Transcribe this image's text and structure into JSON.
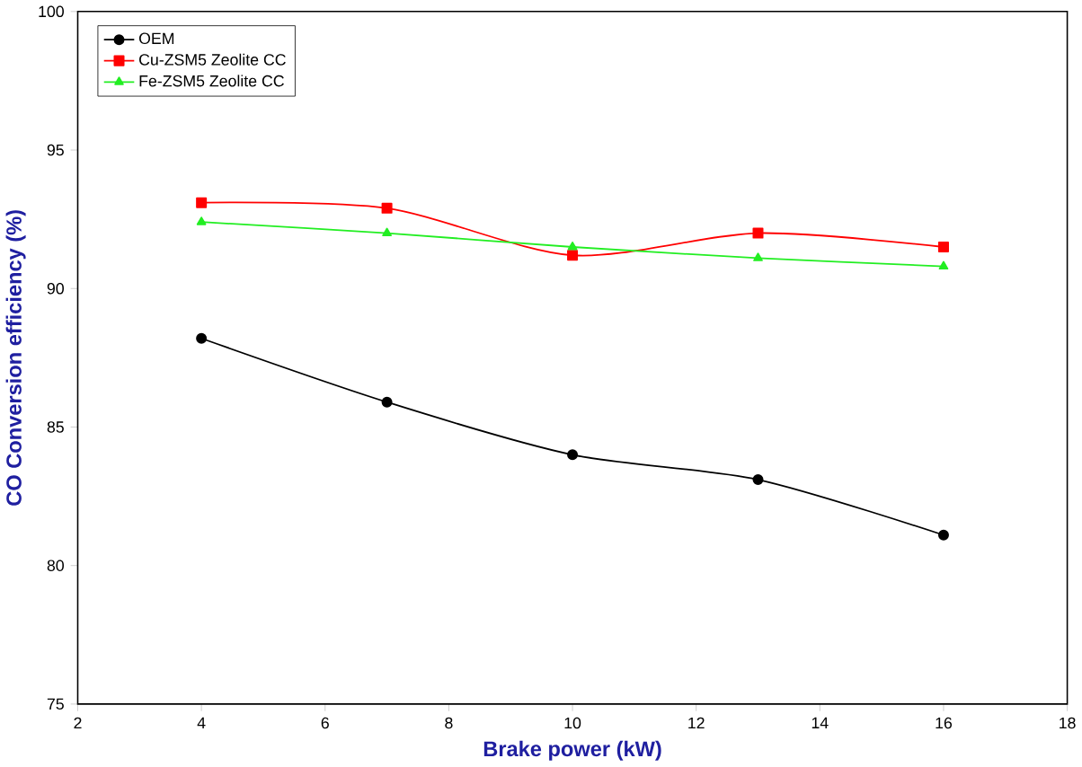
{
  "chart_data": {
    "type": "line",
    "xlabel": "Brake power (kW)",
    "ylabel": "CO Conversion efficiency (%)",
    "x": [
      4,
      7,
      10,
      13,
      16
    ],
    "series": [
      {
        "name": "OEM",
        "color": "#000000",
        "marker": "circle",
        "values": [
          88.2,
          85.9,
          84.0,
          83.1,
          81.1
        ]
      },
      {
        "name": "Cu-ZSM5 Zeolite CC",
        "color": "#ff0000",
        "marker": "square",
        "values": [
          93.1,
          92.9,
          91.2,
          92.0,
          91.5
        ]
      },
      {
        "name": "Fe-ZSM5 Zeolite CC",
        "color": "#22ee22",
        "marker": "triangle",
        "values": [
          92.4,
          92.0,
          91.5,
          91.1,
          90.8
        ]
      }
    ],
    "xlim": [
      2,
      18
    ],
    "xticks": [
      2,
      4,
      6,
      8,
      10,
      12,
      14,
      16,
      18
    ],
    "ylim": [
      75,
      100
    ],
    "yticks": [
      75,
      80,
      85,
      90,
      95,
      100
    ],
    "legend": "top left"
  }
}
